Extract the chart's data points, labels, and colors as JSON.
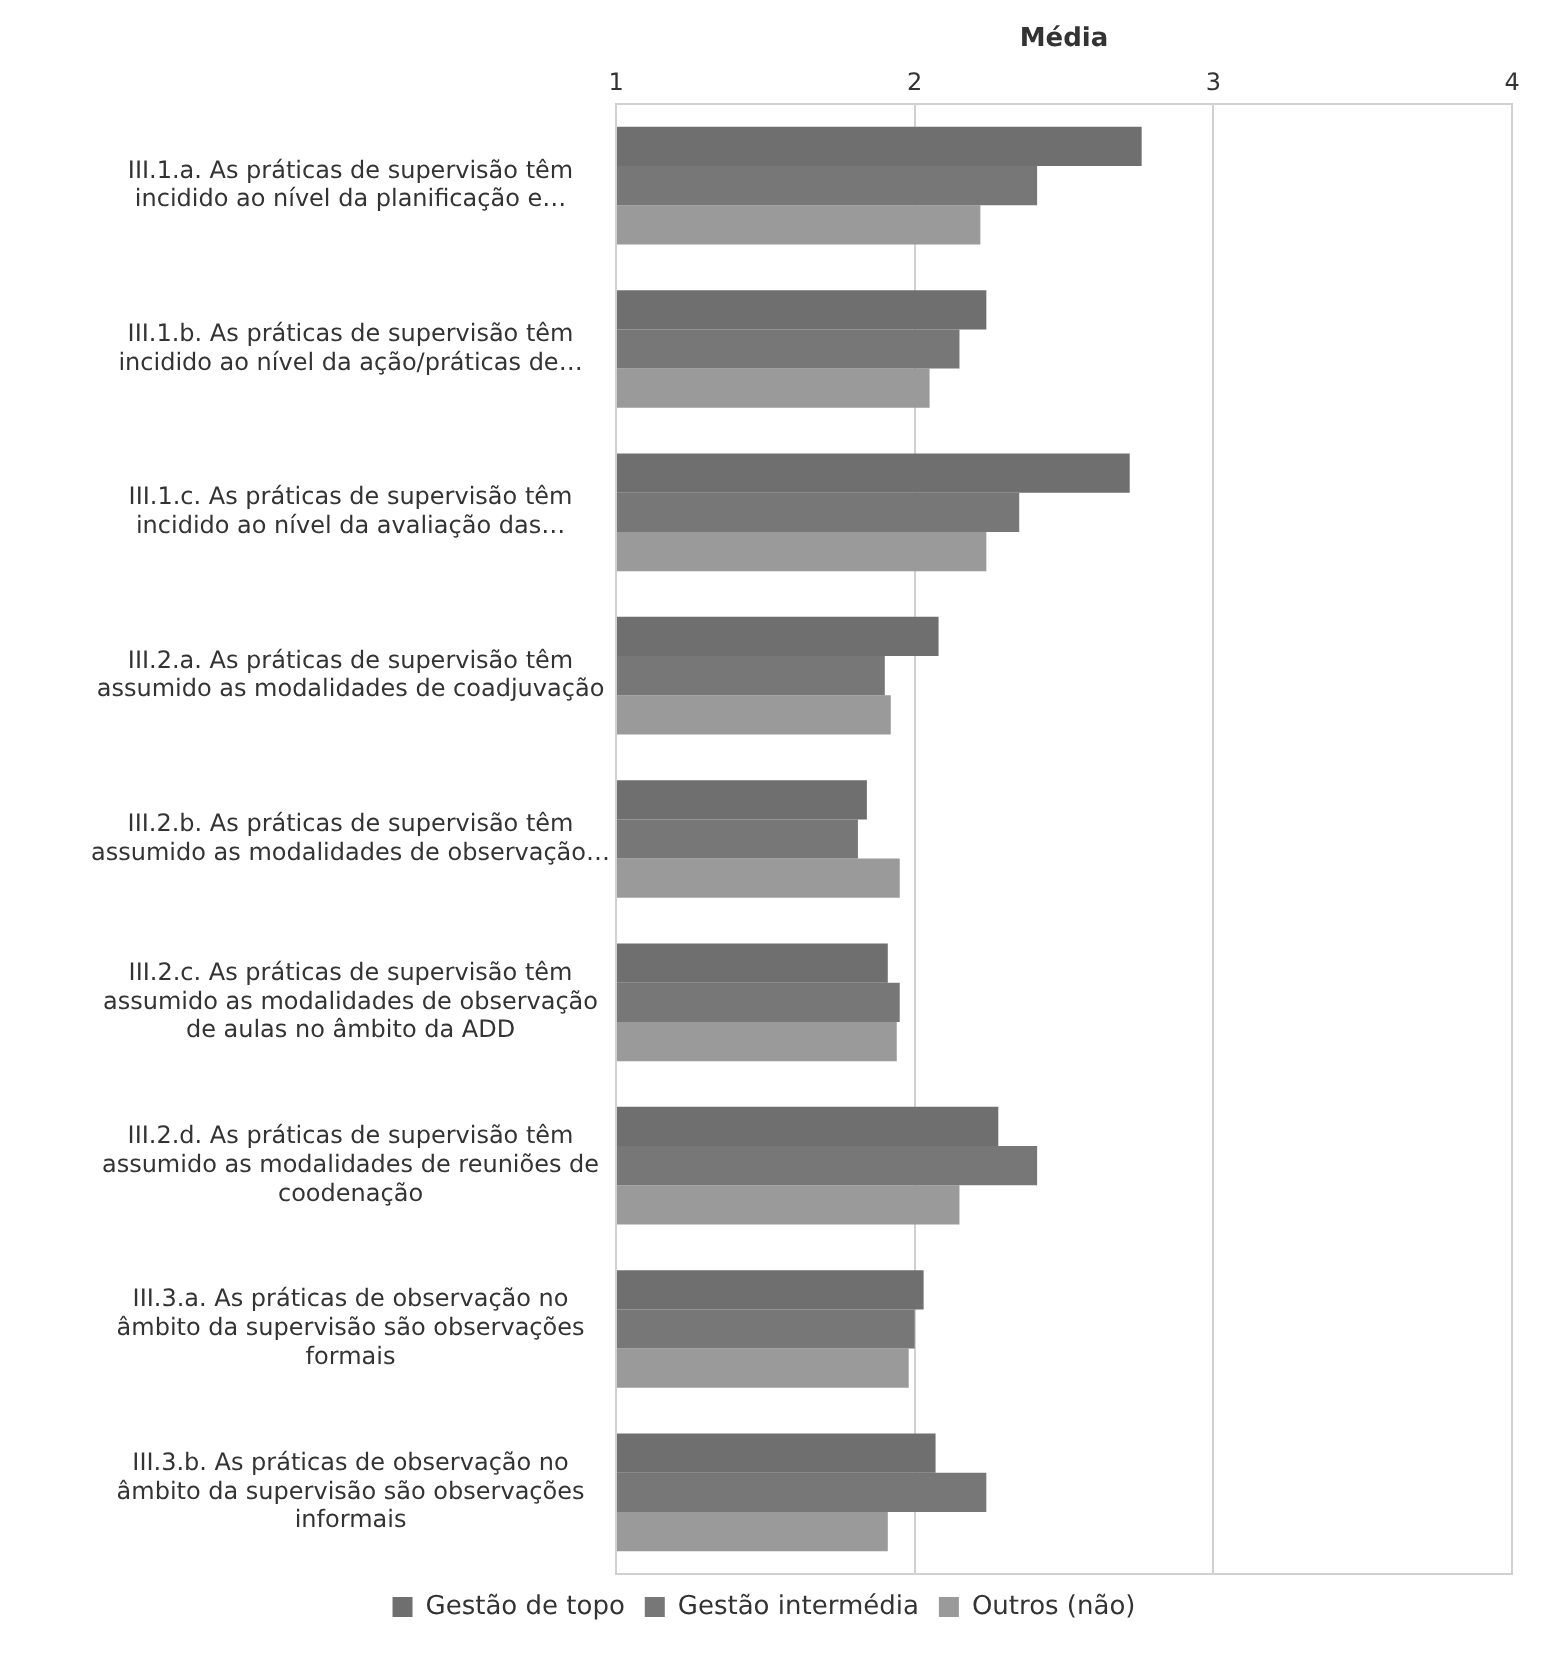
{
  "chart_data": {
    "type": "bar",
    "orientation": "horizontal",
    "xlabel": "Média",
    "categories": [
      "III.1.a. As práticas de supervisão têm incidido ao nível da planificação e…",
      "III.1.b. As práticas de supervisão têm incidido ao nível da ação/práticas de…",
      "III.1.c. As práticas de supervisão têm incidido ao nível da avaliação das…",
      "III.2.a. As práticas de supervisão têm assumido as modalidades de coadjuvação",
      "III.2.b. As práticas de supervisão têm assumido as modalidades de observação…",
      "III.2.c. As práticas de supervisão têm assumido as modalidades de observação de aulas no âmbito da ADD",
      "III.2.d. As práticas de supervisão têm assumido as modalidades de reuniões de coodenação",
      "III.3.a. As práticas de observação no âmbito da supervisão são observações formais",
      "III.3.b. As práticas de observação no âmbito da supervisão são observações informais"
    ],
    "series": [
      {
        "name": "Gestão de topo",
        "color": "#6f6f6f",
        "values": [
          2.76,
          2.24,
          2.72,
          2.08,
          1.84,
          1.91,
          2.28,
          2.03,
          2.07
        ]
      },
      {
        "name": "Gestão intermédia",
        "color": "#777777",
        "values": [
          2.41,
          2.15,
          2.35,
          1.9,
          1.81,
          1.95,
          2.41,
          2.0,
          2.24
        ]
      },
      {
        "name": "Outros (não)",
        "color": "#9a9a9a",
        "values": [
          2.22,
          2.05,
          2.24,
          1.92,
          1.95,
          1.94,
          2.15,
          1.98,
          1.91
        ]
      }
    ],
    "xlim": [
      1,
      4
    ],
    "xticks": [
      1,
      2,
      3,
      4
    ],
    "grid": "x",
    "legend": "bottom"
  }
}
